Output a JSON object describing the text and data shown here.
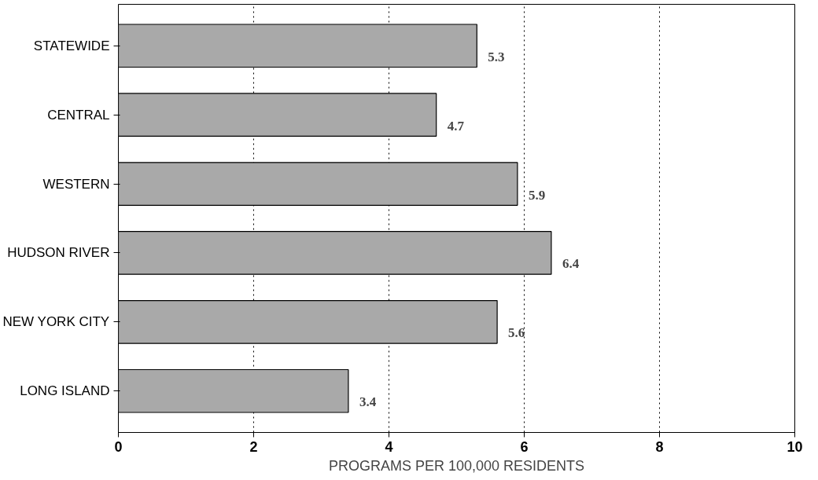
{
  "chart_data": {
    "type": "bar",
    "orientation": "horizontal",
    "xlabel": "PROGRAMS PER 100,000 RESIDENTS",
    "categories": [
      "STATEWIDE",
      "CENTRAL",
      "WESTERN",
      "HUDSON RIVER",
      "NEW YORK CITY",
      "LONG ISLAND"
    ],
    "values": [
      5.3,
      4.7,
      5.9,
      6.4,
      5.6,
      3.4
    ],
    "color": "#a9a9a9",
    "xlim": [
      0,
      10
    ],
    "xticks": [
      0,
      2,
      4,
      6,
      8,
      10
    ],
    "grid": "x",
    "line_style": "dotted",
    "data_labels": true
  }
}
